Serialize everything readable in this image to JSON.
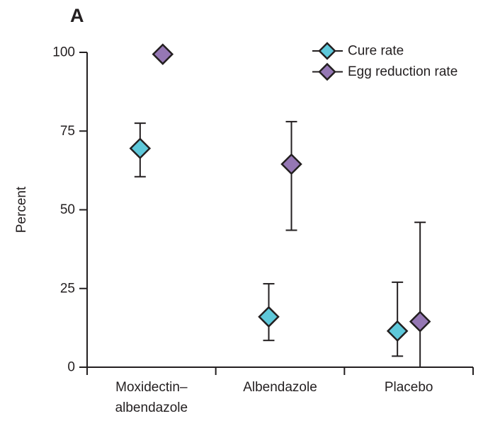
{
  "figure": {
    "panel_label": "A"
  },
  "chart_data": {
    "type": "scatter",
    "title": "",
    "xlabel": "",
    "ylabel": "Percent",
    "ylim": [
      0,
      100
    ],
    "yticks": [
      0,
      25,
      50,
      75,
      100
    ],
    "grid": false,
    "legend_position": "top-right",
    "error_bars": "95% CI",
    "categories": [
      {
        "label_lines": [
          "Moxidectin–",
          "albendazole"
        ]
      },
      {
        "label_lines": [
          "Albendazole"
        ]
      },
      {
        "label_lines": [
          "Placebo"
        ]
      }
    ],
    "series": [
      {
        "name": "Cure rate",
        "marker": "diamond",
        "color": "#5ec8da",
        "points": [
          {
            "category": "Moxidectin–albendazole",
            "value": 69.5,
            "ci_low": 60.5,
            "ci_high": 77.5
          },
          {
            "category": "Albendazole",
            "value": 16.0,
            "ci_low": 8.5,
            "ci_high": 26.5
          },
          {
            "category": "Placebo",
            "value": 11.5,
            "ci_low": 3.5,
            "ci_high": 27.0
          }
        ]
      },
      {
        "name": "Egg reduction rate",
        "marker": "diamond",
        "color": "#9577b4",
        "points": [
          {
            "category": "Moxidectin–albendazole",
            "value": 99.4,
            "ci_low": null,
            "ci_high": null
          },
          {
            "category": "Albendazole",
            "value": 64.5,
            "ci_low": 43.5,
            "ci_high": 78.0
          },
          {
            "category": "Placebo",
            "value": 14.5,
            "ci_low": 0,
            "ci_high": 46.0
          }
        ]
      }
    ],
    "colors": {
      "axis": "#231f20",
      "text": "#231f20"
    }
  }
}
